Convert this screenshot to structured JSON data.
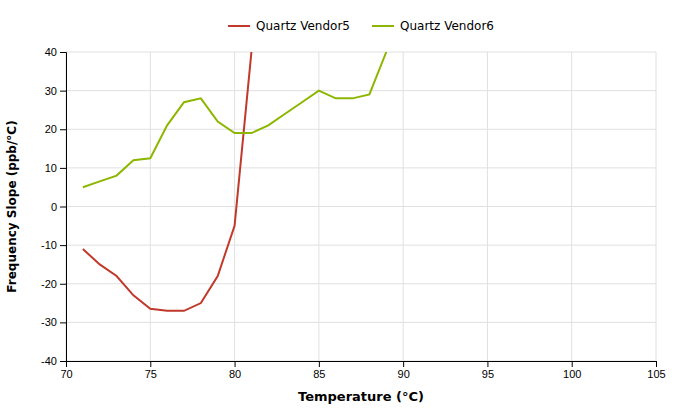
{
  "chart_data": {
    "type": "line",
    "xlabel": "Temperature (°C)",
    "ylabel": "Frequency Slope (ppb/°C)",
    "x": [
      71,
      72,
      73,
      74,
      75,
      76,
      77,
      78,
      79,
      80,
      81,
      82,
      83,
      84,
      85,
      86,
      87,
      88,
      89
    ],
    "series": [
      {
        "name": "Quartz Vendor5",
        "color": "#c0392b",
        "values": [
          -11,
          -15,
          -18,
          -23,
          -26.5,
          -27,
          -27,
          -25,
          -18,
          -5,
          40,
          null,
          null,
          null,
          null,
          null,
          null,
          null,
          null
        ]
      },
      {
        "name": "Quartz Vendor6",
        "color": "#8db600",
        "values": [
          5,
          6.5,
          8,
          12,
          12.5,
          21,
          27,
          28,
          22,
          19,
          19,
          21,
          24,
          27,
          30,
          28,
          28,
          29,
          40
        ]
      }
    ],
    "xlim": [
      70,
      105
    ],
    "ylim": [
      -40,
      40
    ],
    "xticks": [
      70,
      75,
      80,
      85,
      90,
      95,
      100,
      105
    ],
    "yticks": [
      -40,
      -30,
      -20,
      -10,
      0,
      10,
      20,
      30,
      40
    ],
    "grid": true,
    "legend": "top"
  }
}
